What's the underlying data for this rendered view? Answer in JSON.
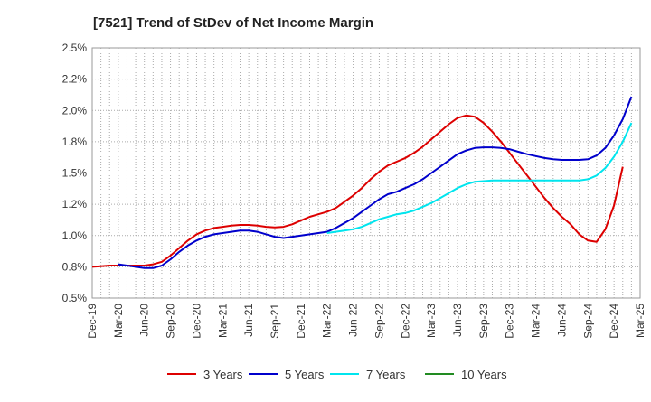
{
  "chart_data": {
    "type": "line",
    "title": "[7521]  Trend of StDev of Net Income Margin",
    "xlabel": "",
    "ylabel": "",
    "ylim": [
      0.5,
      2.5
    ],
    "y_ticks": [
      "2.5%",
      "2.2%",
      "2.0%",
      "1.8%",
      "1.5%",
      "1.2%",
      "1.0%",
      "0.8%",
      "0.5%"
    ],
    "y_tick_values": [
      2.5,
      2.25,
      2.0,
      1.75,
      1.5,
      1.25,
      1.0,
      0.75,
      0.5
    ],
    "x_ticks": [
      "Dec-19",
      "Mar-20",
      "Jun-20",
      "Sep-20",
      "Dec-20",
      "Mar-21",
      "Jun-21",
      "Sep-21",
      "Dec-21",
      "Mar-22",
      "Jun-22",
      "Sep-22",
      "Dec-22",
      "Mar-23",
      "Jun-23",
      "Sep-23",
      "Dec-23",
      "Mar-24",
      "Jun-24",
      "Sep-24",
      "Dec-24",
      "Mar-25"
    ],
    "grid": true,
    "legend_position": "bottom",
    "series": [
      {
        "name": "3 Years",
        "color": "#dd0000",
        "points": [
          [
            "Dec-19",
            0.75
          ],
          [
            "Jan-20",
            0.755
          ],
          [
            "Feb-20",
            0.76
          ],
          [
            "Mar-20",
            0.76
          ],
          [
            "Apr-20",
            0.76
          ],
          [
            "May-20",
            0.76
          ],
          [
            "Jun-20",
            0.76
          ],
          [
            "Jul-20",
            0.77
          ],
          [
            "Aug-20",
            0.79
          ],
          [
            "Sep-20",
            0.84
          ],
          [
            "Oct-20",
            0.9
          ],
          [
            "Nov-20",
            0.96
          ],
          [
            "Dec-20",
            1.01
          ],
          [
            "Jan-21",
            1.04
          ],
          [
            "Feb-21",
            1.06
          ],
          [
            "Mar-21",
            1.07
          ],
          [
            "Apr-21",
            1.08
          ],
          [
            "May-21",
            1.085
          ],
          [
            "Jun-21",
            1.085
          ],
          [
            "Jul-21",
            1.08
          ],
          [
            "Aug-21",
            1.07
          ],
          [
            "Sep-21",
            1.065
          ],
          [
            "Oct-21",
            1.07
          ],
          [
            "Nov-21",
            1.09
          ],
          [
            "Dec-21",
            1.12
          ],
          [
            "Jan-22",
            1.15
          ],
          [
            "Feb-22",
            1.17
          ],
          [
            "Mar-22",
            1.19
          ],
          [
            "Apr-22",
            1.22
          ],
          [
            "May-22",
            1.27
          ],
          [
            "Jun-22",
            1.32
          ],
          [
            "Jul-22",
            1.38
          ],
          [
            "Aug-22",
            1.45
          ],
          [
            "Sep-22",
            1.51
          ],
          [
            "Oct-22",
            1.56
          ],
          [
            "Nov-22",
            1.59
          ],
          [
            "Dec-22",
            1.62
          ],
          [
            "Jan-23",
            1.66
          ],
          [
            "Feb-23",
            1.71
          ],
          [
            "Mar-23",
            1.77
          ],
          [
            "Apr-23",
            1.83
          ],
          [
            "May-23",
            1.89
          ],
          [
            "Jun-23",
            1.94
          ],
          [
            "Jul-23",
            1.96
          ],
          [
            "Aug-23",
            1.95
          ],
          [
            "Sep-23",
            1.9
          ],
          [
            "Oct-23",
            1.83
          ],
          [
            "Nov-23",
            1.75
          ],
          [
            "Dec-23",
            1.66
          ],
          [
            "Jan-24",
            1.57
          ],
          [
            "Feb-24",
            1.48
          ],
          [
            "Mar-24",
            1.39
          ],
          [
            "Apr-24",
            1.3
          ],
          [
            "May-24",
            1.22
          ],
          [
            "Jun-24",
            1.15
          ],
          [
            "Jul-24",
            1.09
          ],
          [
            "Aug-24",
            1.01
          ],
          [
            "Sep-24",
            0.96
          ],
          [
            "Oct-24",
            0.95
          ],
          [
            "Nov-24",
            1.05
          ],
          [
            "Dec-24",
            1.24
          ],
          [
            "Jan-25",
            1.55
          ]
        ]
      },
      {
        "name": "5 Years",
        "color": "#0000cc",
        "points": [
          [
            "Mar-20",
            0.77
          ],
          [
            "Apr-20",
            0.76
          ],
          [
            "May-20",
            0.75
          ],
          [
            "Jun-20",
            0.74
          ],
          [
            "Jul-20",
            0.74
          ],
          [
            "Aug-20",
            0.76
          ],
          [
            "Sep-20",
            0.81
          ],
          [
            "Oct-20",
            0.87
          ],
          [
            "Nov-20",
            0.92
          ],
          [
            "Dec-20",
            0.96
          ],
          [
            "Jan-21",
            0.99
          ],
          [
            "Feb-21",
            1.01
          ],
          [
            "Mar-21",
            1.02
          ],
          [
            "Apr-21",
            1.03
          ],
          [
            "May-21",
            1.04
          ],
          [
            "Jun-21",
            1.04
          ],
          [
            "Jul-21",
            1.03
          ],
          [
            "Aug-21",
            1.01
          ],
          [
            "Sep-21",
            0.99
          ],
          [
            "Oct-21",
            0.98
          ],
          [
            "Nov-21",
            0.99
          ],
          [
            "Dec-21",
            1.0
          ],
          [
            "Jan-22",
            1.01
          ],
          [
            "Feb-22",
            1.02
          ],
          [
            "Mar-22",
            1.03
          ],
          [
            "Apr-22",
            1.06
          ],
          [
            "May-22",
            1.1
          ],
          [
            "Jun-22",
            1.14
          ],
          [
            "Jul-22",
            1.19
          ],
          [
            "Aug-22",
            1.24
          ],
          [
            "Sep-22",
            1.29
          ],
          [
            "Oct-22",
            1.33
          ],
          [
            "Nov-22",
            1.35
          ],
          [
            "Dec-22",
            1.38
          ],
          [
            "Jan-23",
            1.41
          ],
          [
            "Feb-23",
            1.45
          ],
          [
            "Mar-23",
            1.5
          ],
          [
            "Apr-23",
            1.55
          ],
          [
            "May-23",
            1.6
          ],
          [
            "Jun-23",
            1.65
          ],
          [
            "Jul-23",
            1.68
          ],
          [
            "Aug-23",
            1.7
          ],
          [
            "Sep-23",
            1.705
          ],
          [
            "Oct-23",
            1.705
          ],
          [
            "Nov-23",
            1.7
          ],
          [
            "Dec-23",
            1.69
          ],
          [
            "Jan-24",
            1.67
          ],
          [
            "Feb-24",
            1.65
          ],
          [
            "Mar-24",
            1.635
          ],
          [
            "Apr-24",
            1.62
          ],
          [
            "May-24",
            1.61
          ],
          [
            "Jun-24",
            1.605
          ],
          [
            "Jul-24",
            1.605
          ],
          [
            "Aug-24",
            1.605
          ],
          [
            "Sep-24",
            1.61
          ],
          [
            "Oct-24",
            1.64
          ],
          [
            "Nov-24",
            1.7
          ],
          [
            "Dec-24",
            1.8
          ],
          [
            "Jan-25",
            1.93
          ],
          [
            "Feb-25",
            2.11
          ]
        ]
      },
      {
        "name": "7 Years",
        "color": "#00e5ee",
        "points": [
          [
            "Mar-22",
            1.02
          ],
          [
            "Apr-22",
            1.03
          ],
          [
            "May-22",
            1.04
          ],
          [
            "Jun-22",
            1.05
          ],
          [
            "Jul-22",
            1.07
          ],
          [
            "Aug-22",
            1.1
          ],
          [
            "Sep-22",
            1.13
          ],
          [
            "Oct-22",
            1.15
          ],
          [
            "Nov-22",
            1.17
          ],
          [
            "Dec-22",
            1.18
          ],
          [
            "Jan-23",
            1.2
          ],
          [
            "Feb-23",
            1.23
          ],
          [
            "Mar-23",
            1.26
          ],
          [
            "Apr-23",
            1.3
          ],
          [
            "May-23",
            1.34
          ],
          [
            "Jun-23",
            1.38
          ],
          [
            "Jul-23",
            1.41
          ],
          [
            "Aug-23",
            1.43
          ],
          [
            "Sep-23",
            1.435
          ],
          [
            "Oct-23",
            1.44
          ],
          [
            "Nov-23",
            1.44
          ],
          [
            "Dec-23",
            1.44
          ],
          [
            "Jan-24",
            1.44
          ],
          [
            "Feb-24",
            1.44
          ],
          [
            "Mar-24",
            1.44
          ],
          [
            "Apr-24",
            1.44
          ],
          [
            "May-24",
            1.44
          ],
          [
            "Jun-24",
            1.44
          ],
          [
            "Jul-24",
            1.44
          ],
          [
            "Aug-24",
            1.44
          ],
          [
            "Sep-24",
            1.45
          ],
          [
            "Oct-24",
            1.48
          ],
          [
            "Nov-24",
            1.54
          ],
          [
            "Dec-24",
            1.63
          ],
          [
            "Jan-25",
            1.75
          ],
          [
            "Feb-25",
            1.9
          ]
        ]
      },
      {
        "name": "10 Years",
        "color": "#228b22",
        "points": []
      }
    ]
  }
}
